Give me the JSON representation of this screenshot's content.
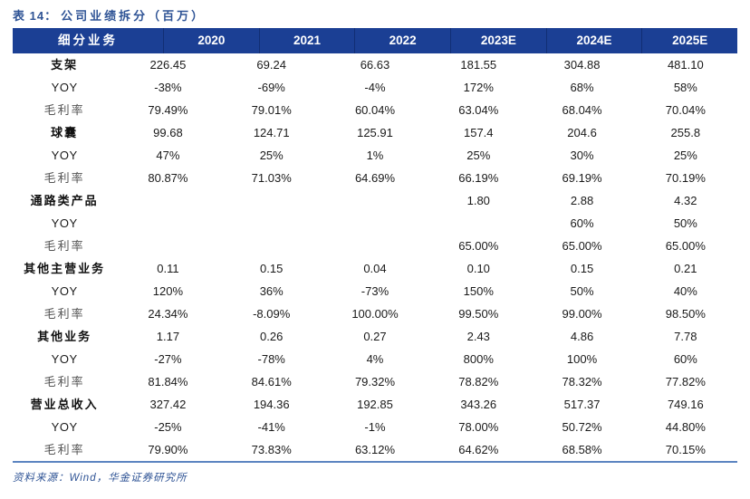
{
  "title": {
    "prefix": "表 14：",
    "text": "公司业绩拆分（百万）"
  },
  "colors": {
    "header_bg": "#1B3F94",
    "title_text": "#2E5395",
    "bottom_border": "#5B84C0",
    "header_text": "#FFFFFF",
    "body_text": "#1A1A1A"
  },
  "table": {
    "header": [
      "细分业务",
      "2020",
      "2021",
      "2022",
      "2023E",
      "2024E",
      "2025E"
    ],
    "rows": [
      {
        "label": "支架",
        "style": "category",
        "values": [
          "226.45",
          "69.24",
          "66.63",
          "181.55",
          "304.88",
          "481.10"
        ]
      },
      {
        "label": "YOY",
        "style": "yoy",
        "values": [
          "-38%",
          "-69%",
          "-4%",
          "172%",
          "68%",
          "58%"
        ]
      },
      {
        "label": "毛利率",
        "style": "margin",
        "values": [
          "79.49%",
          "79.01%",
          "60.04%",
          "63.04%",
          "68.04%",
          "70.04%"
        ]
      },
      {
        "label": "球囊",
        "style": "category",
        "values": [
          "99.68",
          "124.71",
          "125.91",
          "157.4",
          "204.6",
          "255.8"
        ]
      },
      {
        "label": "YOY",
        "style": "yoy",
        "values": [
          "47%",
          "25%",
          "1%",
          "25%",
          "30%",
          "25%"
        ]
      },
      {
        "label": "毛利率",
        "style": "margin",
        "values": [
          "80.87%",
          "71.03%",
          "64.69%",
          "66.19%",
          "69.19%",
          "70.19%"
        ]
      },
      {
        "label": "通路类产品",
        "style": "category",
        "values": [
          "",
          "",
          "",
          "1.80",
          "2.88",
          "4.32"
        ]
      },
      {
        "label": "YOY",
        "style": "yoy",
        "values": [
          "",
          "",
          "",
          "",
          "60%",
          "50%"
        ]
      },
      {
        "label": "毛利率",
        "style": "margin",
        "values": [
          "",
          "",
          "",
          "65.00%",
          "65.00%",
          "65.00%"
        ]
      },
      {
        "label": "其他主营业务",
        "style": "category",
        "values": [
          "0.11",
          "0.15",
          "0.04",
          "0.10",
          "0.15",
          "0.21"
        ]
      },
      {
        "label": "YOY",
        "style": "yoy",
        "values": [
          "120%",
          "36%",
          "-73%",
          "150%",
          "50%",
          "40%"
        ]
      },
      {
        "label": "毛利率",
        "style": "margin",
        "values": [
          "24.34%",
          "-8.09%",
          "100.00%",
          "99.50%",
          "99.00%",
          "98.50%"
        ]
      },
      {
        "label": "其他业务",
        "style": "category",
        "values": [
          "1.17",
          "0.26",
          "0.27",
          "2.43",
          "4.86",
          "7.78"
        ]
      },
      {
        "label": "YOY",
        "style": "yoy",
        "values": [
          "-27%",
          "-78%",
          "4%",
          "800%",
          "100%",
          "60%"
        ]
      },
      {
        "label": "毛利率",
        "style": "margin",
        "values": [
          "81.84%",
          "84.61%",
          "79.32%",
          "78.82%",
          "78.32%",
          "77.82%"
        ]
      },
      {
        "label": "营业总收入",
        "style": "category",
        "values": [
          "327.42",
          "194.36",
          "192.85",
          "343.26",
          "517.37",
          "749.16"
        ]
      },
      {
        "label": "YOY",
        "style": "yoy",
        "values": [
          "-25%",
          "-41%",
          "-1%",
          "78.00%",
          "50.72%",
          "44.80%"
        ]
      },
      {
        "label": "毛利率",
        "style": "margin",
        "values": [
          "79.90%",
          "73.83%",
          "63.12%",
          "64.62%",
          "68.58%",
          "70.15%"
        ]
      }
    ]
  },
  "source": {
    "text": "资料来源：Wind，华金证券研究所"
  }
}
